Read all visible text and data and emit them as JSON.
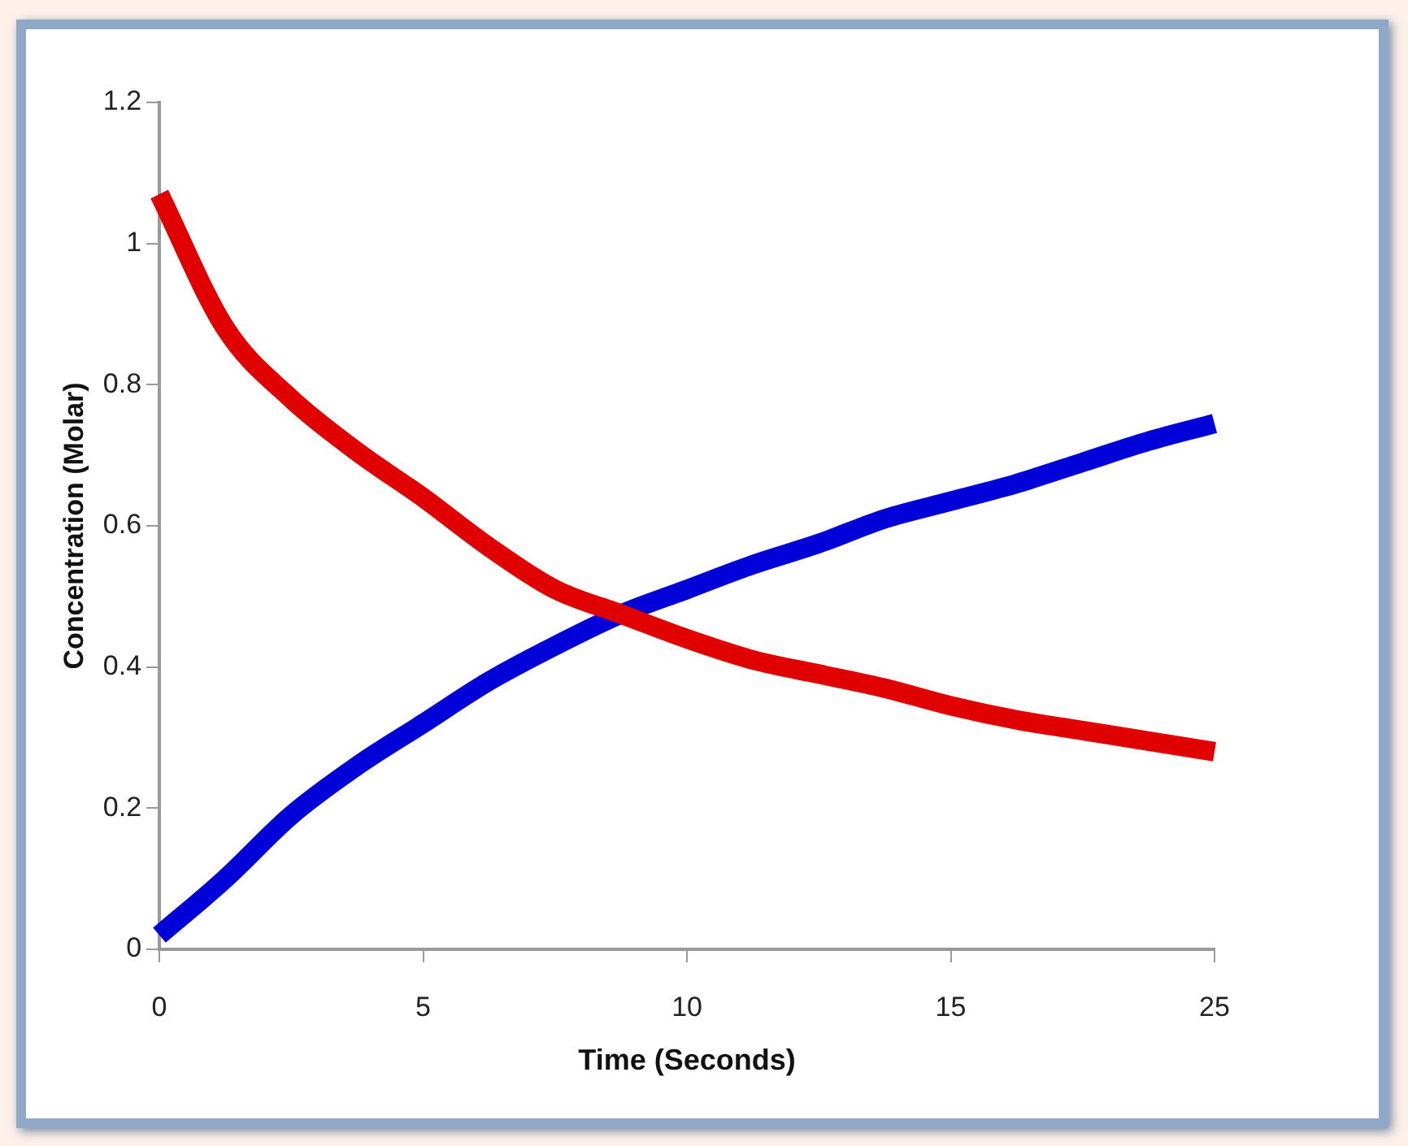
{
  "chart_data": {
    "type": "line",
    "xlabel": "Time (Seconds)",
    "ylabel": "Concentration (Molar)",
    "categories": [
      "0",
      null,
      null,
      null,
      "5",
      null,
      null,
      null,
      "10",
      null,
      null,
      null,
      "15",
      null,
      null,
      null,
      "25"
    ],
    "series": [
      {
        "color": "#e00000",
        "values": [
          1.07,
          0.88,
          0.78,
          0.705,
          0.64,
          0.57,
          0.51,
          0.475,
          0.44,
          0.41,
          0.39,
          0.37,
          0.345,
          0.325,
          0.31,
          0.295,
          0.28
        ]
      },
      {
        "color": "#0000d8",
        "values": [
          0.02,
          0.1,
          0.19,
          0.26,
          0.32,
          0.38,
          0.43,
          0.475,
          0.51,
          0.545,
          0.575,
          0.61,
          0.635,
          0.66,
          0.69,
          0.72,
          0.745
        ]
      }
    ],
    "ylim": [
      0,
      1.2
    ],
    "yticks": [
      0,
      0.2,
      0.4,
      0.6,
      0.8,
      1,
      1.2
    ],
    "grid": false,
    "legend": false,
    "marker": "none",
    "line_style": "solid"
  }
}
